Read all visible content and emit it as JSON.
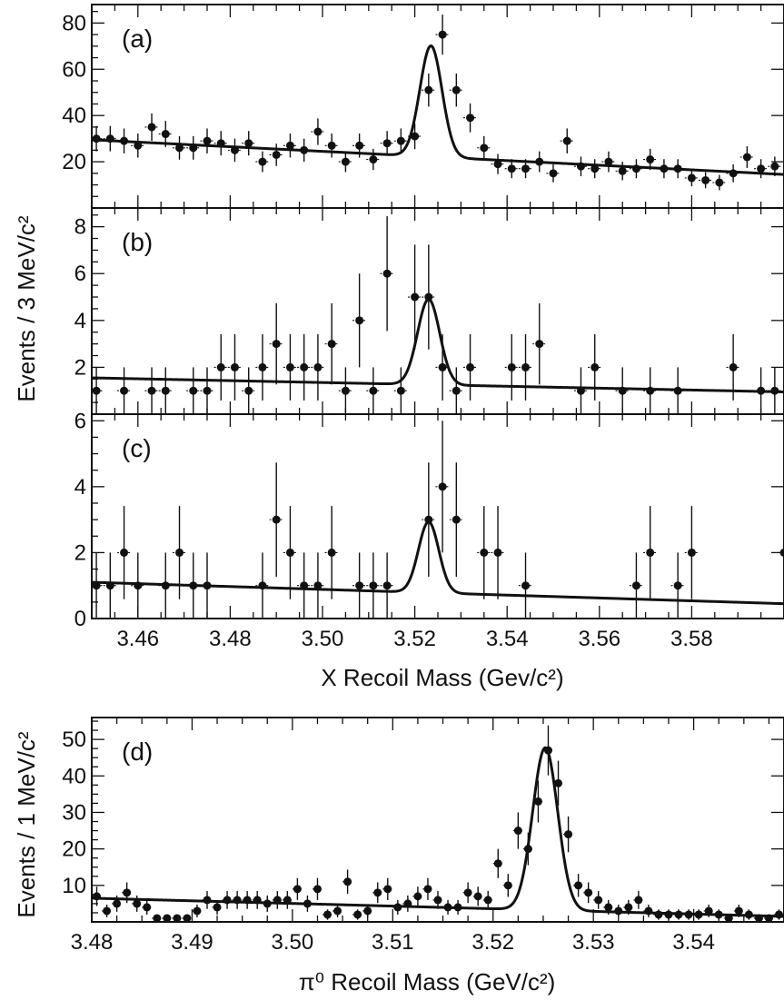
{
  "chart_data": [
    {
      "type": "scatter",
      "panel_label": "(a)",
      "xlim": [
        3.45,
        3.6
      ],
      "ylim": [
        0,
        88
      ],
      "yticks": [
        "20",
        "40",
        "60",
        "80"
      ],
      "ytick_values": [
        20,
        40,
        60,
        80
      ],
      "x": [
        3.451,
        3.454,
        3.457,
        3.46,
        3.463,
        3.466,
        3.469,
        3.472,
        3.475,
        3.478,
        3.481,
        3.484,
        3.487,
        3.49,
        3.493,
        3.496,
        3.499,
        3.502,
        3.505,
        3.508,
        3.511,
        3.514,
        3.517,
        3.52,
        3.523,
        3.526,
        3.529,
        3.532,
        3.535,
        3.538,
        3.541,
        3.544,
        3.547,
        3.55,
        3.553,
        3.556,
        3.559,
        3.562,
        3.565,
        3.568,
        3.571,
        3.574,
        3.577,
        3.58,
        3.583,
        3.586,
        3.589,
        3.592,
        3.595,
        3.598
      ],
      "y": [
        30,
        30,
        29,
        27,
        35,
        32,
        26,
        26,
        29,
        28,
        25,
        28,
        20,
        23,
        27,
        25,
        33,
        27,
        20,
        27,
        21,
        28,
        29,
        31,
        51,
        75,
        51,
        39,
        26,
        19,
        17,
        17,
        20,
        15,
        29,
        18,
        17,
        20,
        16,
        17,
        21,
        17,
        17,
        13,
        12,
        11,
        15,
        22,
        17,
        18
      ],
      "fit": {
        "bg_start": 29.5,
        "bg_end": 14.5,
        "peak": 3.5235,
        "sigma": 0.0024,
        "amp": 48
      }
    },
    {
      "type": "scatter",
      "panel_label": "(b)",
      "xlim": [
        3.45,
        3.6
      ],
      "ylim": [
        0,
        8.8
      ],
      "yticks": [
        "2",
        "4",
        "6",
        "8"
      ],
      "ytick_values": [
        2,
        4,
        6,
        8
      ],
      "x": [
        3.451,
        3.457,
        3.463,
        3.466,
        3.472,
        3.475,
        3.478,
        3.481,
        3.484,
        3.487,
        3.49,
        3.493,
        3.496,
        3.499,
        3.502,
        3.505,
        3.508,
        3.511,
        3.514,
        3.517,
        3.52,
        3.523,
        3.526,
        3.529,
        3.532,
        3.541,
        3.544,
        3.547,
        3.556,
        3.559,
        3.565,
        3.571,
        3.577,
        3.589,
        3.595,
        3.598
      ],
      "y": [
        1,
        1,
        1,
        1,
        1,
        1,
        2,
        2,
        1,
        2,
        3,
        2,
        2,
        2,
        3,
        1,
        4,
        1,
        6,
        1,
        5,
        5,
        2,
        1,
        2,
        2,
        2,
        3,
        1,
        2,
        1,
        1,
        1,
        2,
        1,
        1
      ],
      "fit": {
        "bg_start": 1.55,
        "bg_end": 0.95,
        "peak": 3.523,
        "sigma": 0.0024,
        "amp": 3.65
      }
    },
    {
      "type": "scatter",
      "panel_label": "(c)",
      "xlim": [
        3.45,
        3.6
      ],
      "ylim": [
        0,
        6.2
      ],
      "yticks": [
        "0",
        "2",
        "4",
        "6"
      ],
      "ytick_values": [
        0,
        2,
        4,
        6
      ],
      "x": [
        3.451,
        3.454,
        3.457,
        3.46,
        3.466,
        3.469,
        3.472,
        3.475,
        3.487,
        3.49,
        3.493,
        3.496,
        3.499,
        3.502,
        3.508,
        3.511,
        3.514,
        3.523,
        3.526,
        3.529,
        3.535,
        3.538,
        3.544,
        3.568,
        3.571,
        3.577,
        3.58,
        3.6
      ],
      "y": [
        1,
        1,
        2,
        1,
        1,
        2,
        1,
        1,
        1,
        3,
        2,
        1,
        1,
        2,
        1,
        1,
        1,
        3,
        4,
        3,
        2,
        2,
        1,
        1,
        2,
        1,
        2,
        2
      ],
      "fit": {
        "bg_start": 1.1,
        "bg_end": 0.45,
        "peak": 3.523,
        "sigma": 0.0022,
        "amp": 2.15
      }
    },
    {
      "type": "scatter",
      "panel_label": "(d)",
      "xlim": [
        3.48,
        3.549
      ],
      "ylim": [
        0,
        56
      ],
      "yticks": [
        "10",
        "20",
        "30",
        "40",
        "50"
      ],
      "ytick_values": [
        10,
        20,
        30,
        40,
        50
      ],
      "x": [
        3.4805,
        3.4815,
        3.4825,
        3.4835,
        3.4845,
        3.4855,
        3.4865,
        3.4875,
        3.4885,
        3.4895,
        3.4905,
        3.4915,
        3.4925,
        3.4935,
        3.4945,
        3.4955,
        3.4965,
        3.4975,
        3.4985,
        3.4995,
        3.5005,
        3.5015,
        3.5025,
        3.5035,
        3.5045,
        3.5055,
        3.5065,
        3.5075,
        3.5085,
        3.5095,
        3.5105,
        3.5115,
        3.5125,
        3.5135,
        3.5145,
        3.5155,
        3.5165,
        3.5175,
        3.5185,
        3.5195,
        3.5205,
        3.5215,
        3.5225,
        3.5235,
        3.5245,
        3.5255,
        3.5265,
        3.5275,
        3.5285,
        3.5295,
        3.5305,
        3.5315,
        3.5325,
        3.5335,
        3.5345,
        3.5355,
        3.5365,
        3.5375,
        3.5385,
        3.5395,
        3.5405,
        3.5415,
        3.5425,
        3.5435,
        3.5445,
        3.5455,
        3.5465,
        3.5475,
        3.5485
      ],
      "y": [
        7,
        3,
        5,
        8,
        5,
        4,
        1,
        1,
        1,
        1,
        3,
        6,
        4,
        6,
        6,
        6,
        6,
        5,
        6,
        6,
        9,
        5,
        9,
        2,
        3,
        11,
        2,
        3,
        8,
        9,
        4,
        5,
        7,
        9,
        6,
        4,
        4,
        8,
        7,
        6,
        16,
        10,
        25,
        20,
        33,
        47,
        38,
        24,
        10,
        8,
        6,
        4,
        3,
        4,
        6,
        3,
        2,
        2,
        2,
        2,
        2,
        3,
        2,
        1,
        3,
        2,
        1,
        1,
        2
      ],
      "fit": {
        "bg_start": 6.5,
        "bg_end": 1.5,
        "peak": 3.5252,
        "sigma": 0.00125,
        "amp": 44.5
      }
    }
  ],
  "axes": {
    "upper_xticks": [
      "3.46",
      "3.48",
      "3.50",
      "3.52",
      "3.54",
      "3.56",
      "3.58"
    ],
    "upper_xtick_values": [
      3.46,
      3.48,
      3.5,
      3.52,
      3.54,
      3.56,
      3.58
    ],
    "upper_xlabel": "X Recoil Mass (Gev/c²)",
    "upper_ylabel": "Events / 3 MeV/c²",
    "lower_xticks": [
      "3.48",
      "3.49",
      "3.50",
      "3.51",
      "3.52",
      "3.53",
      "3.54"
    ],
    "lower_xtick_values": [
      3.48,
      3.49,
      3.5,
      3.51,
      3.52,
      3.53,
      3.54
    ],
    "lower_xlabel": "π⁰ Recoil Mass (GeV/c²)",
    "lower_ylabel": "Events / 1 MeV/c²"
  }
}
